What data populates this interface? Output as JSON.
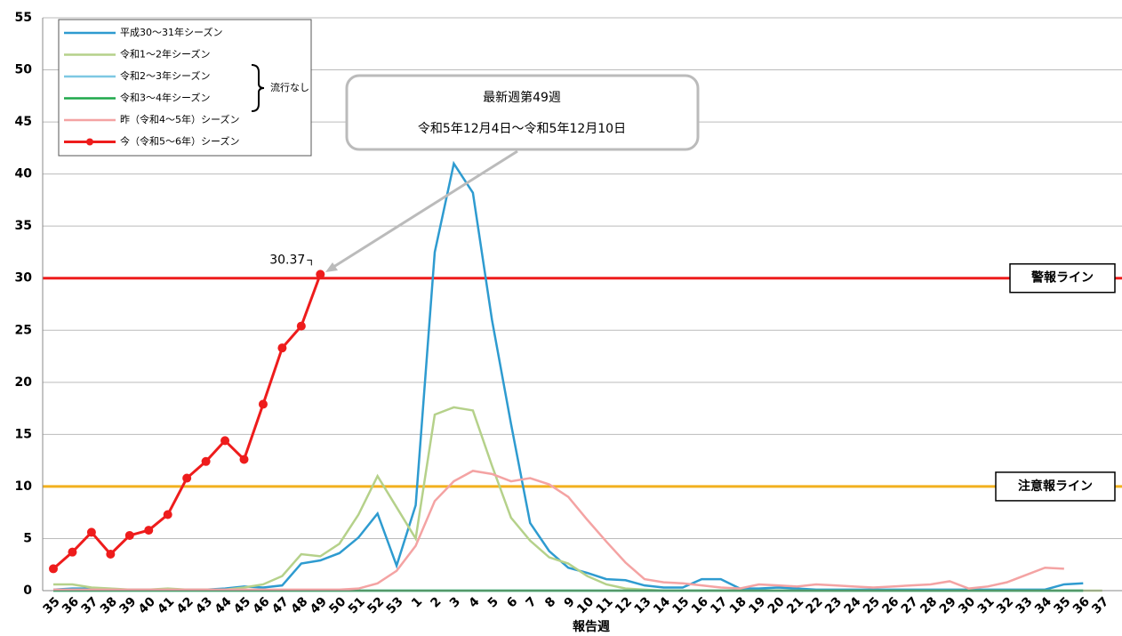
{
  "chart_data": {
    "type": "line",
    "categories": [
      "35",
      "36",
      "37",
      "38",
      "39",
      "40",
      "41",
      "42",
      "43",
      "44",
      "45",
      "46",
      "47",
      "48",
      "49",
      "50",
      "51",
      "52",
      "53",
      "1",
      "2",
      "3",
      "4",
      "5",
      "6",
      "7",
      "8",
      "9",
      "10",
      "11",
      "12",
      "13",
      "14",
      "15",
      "16",
      "17",
      "18",
      "19",
      "20",
      "21",
      "22",
      "23",
      "24",
      "25",
      "26",
      "27",
      "28",
      "29",
      "30",
      "31",
      "32",
      "33",
      "34",
      "35",
      "36",
      "37"
    ],
    "x_label": "報告週",
    "ylim": [
      0,
      55
    ],
    "yticks": [
      0,
      5,
      10,
      15,
      20,
      25,
      30,
      35,
      40,
      45,
      50,
      55
    ],
    "grid": true,
    "series": [
      {
        "name": "平成30～31年シーズン",
        "color": "#2e9bd0",
        "values": [
          0.1,
          0.2,
          0.2,
          0.1,
          0.1,
          0.1,
          0.1,
          0.1,
          0.1,
          0.2,
          0.4,
          0.3,
          0.5,
          2.6,
          2.9,
          3.6,
          5.1,
          7.4,
          2.4,
          8.2,
          32.5,
          41,
          38.2,
          26,
          16,
          6.5,
          3.8,
          2.2,
          1.7,
          1.1,
          1.0,
          0.5,
          0.3,
          0.3,
          1.1,
          1.1,
          0.2,
          0.2,
          0.3,
          0.2,
          0.1,
          0.1,
          0.1,
          0.1,
          0.1,
          0.1,
          0.1,
          0.1,
          0.1,
          0.1,
          0.1,
          0.1,
          0.1,
          0.6,
          0.7,
          null
        ]
      },
      {
        "name": "令和1～2年シーズン",
        "color": "#b5d18a",
        "values": [
          0.6,
          0.6,
          0.3,
          0.2,
          0.1,
          0.1,
          0.2,
          0.1,
          0.1,
          0.1,
          0.3,
          0.6,
          1.4,
          3.5,
          3.3,
          4.5,
          7.3,
          11.0,
          8.0,
          5.0,
          16.9,
          17.6,
          17.3,
          12,
          7.0,
          4.8,
          3.2,
          2.6,
          1.4,
          0.6,
          0.2,
          0.1,
          0,
          0,
          0,
          0,
          0,
          0,
          0,
          0,
          0,
          0,
          0,
          0,
          0,
          0,
          0,
          0,
          0,
          0,
          0,
          0,
          0,
          0,
          0,
          0
        ]
      },
      {
        "name": "令和2～3年シーズン",
        "color": "#7ec8e3",
        "values": [
          0,
          0,
          0,
          0,
          0,
          0,
          0,
          0,
          0,
          0,
          0,
          0,
          0,
          0,
          0,
          0,
          0,
          0,
          0,
          0,
          0,
          0,
          0,
          0,
          0,
          0,
          0,
          0,
          0,
          0,
          0,
          0,
          0,
          0,
          0,
          0,
          0,
          0,
          0,
          0,
          0,
          0,
          0,
          0,
          0,
          0,
          0,
          0,
          0,
          0,
          0,
          0,
          0,
          0,
          0,
          null
        ]
      },
      {
        "name": "令和3～4年シーズン",
        "color": "#1fa84a",
        "values": [
          0,
          0,
          0,
          0,
          0,
          0,
          0,
          0,
          0,
          0,
          0,
          0,
          0,
          0,
          0,
          0,
          0,
          0,
          0,
          0,
          0,
          0,
          0,
          0,
          0,
          0,
          0,
          0,
          0,
          0,
          0,
          0,
          0,
          0,
          0,
          0,
          0,
          0,
          0,
          0,
          0,
          0,
          0,
          0,
          0,
          0,
          0,
          0,
          0,
          0,
          0,
          0,
          0,
          0,
          0,
          null
        ]
      },
      {
        "name": "昨（令和4～5年）シーズン",
        "color": "#f4a3a3",
        "values": [
          0.1,
          0.1,
          0.1,
          0.1,
          0.1,
          0.1,
          0.1,
          0.1,
          0.1,
          0.1,
          0.1,
          0.1,
          0.1,
          0.1,
          0.1,
          0.1,
          0.2,
          0.7,
          1.9,
          4.3,
          8.6,
          10.5,
          11.5,
          11.2,
          10.5,
          10.8,
          10.2,
          9.0,
          6.8,
          4.7,
          2.7,
          1.1,
          0.8,
          0.7,
          0.5,
          0.3,
          0.2,
          0.6,
          0.5,
          0.4,
          0.6,
          0.5,
          0.4,
          0.3,
          0.4,
          0.5,
          0.6,
          0.9,
          0.2,
          0.4,
          0.8,
          1.5,
          2.2,
          2.1,
          null,
          null
        ]
      },
      {
        "name": "今（令和5～6年）シーズン",
        "color": "#ee1c1c",
        "markers": true,
        "values": [
          2.1,
          3.7,
          5.6,
          3.5,
          5.3,
          5.8,
          7.3,
          10.8,
          12.4,
          14.4,
          12.6,
          17.9,
          23.3,
          25.4,
          30.37,
          null,
          null,
          null,
          null,
          null,
          null,
          null,
          null,
          null,
          null,
          null,
          null,
          null,
          null,
          null,
          null,
          null,
          null,
          null,
          null,
          null,
          null,
          null,
          null,
          null,
          null,
          null,
          null,
          null,
          null,
          null,
          null,
          null,
          null,
          null,
          null,
          null,
          null,
          null,
          null,
          null
        ]
      }
    ],
    "reference_lines": [
      {
        "value": 30,
        "label": "警報ライン",
        "color": "#ee1c1c"
      },
      {
        "value": 10,
        "label": "注意報ライン",
        "color": "#f2b01e"
      }
    ],
    "legend_note": "流行なし",
    "callout": [
      "最新週第49週",
      "令和5年12月4日～令和5年12月10日"
    ]
  }
}
